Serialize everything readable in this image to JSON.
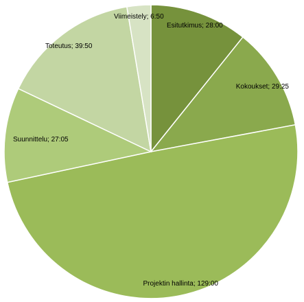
{
  "chart_data": {
    "type": "pie",
    "title": "",
    "units": "h:mm",
    "start_angle_deg": 0,
    "direction": "clockwise",
    "slices": [
      {
        "label": "Esitutkimus; 28:00",
        "value": 28.0,
        "color": "#76923c"
      },
      {
        "label": "Kokoukset; 29:25",
        "value": 29.4167,
        "color": "#8aa94d"
      },
      {
        "label": "Projektin hallinta; 129:00",
        "value": 129.0,
        "color": "#9bbb59"
      },
      {
        "label": "Suunnittelu; 27:05",
        "value": 27.0833,
        "color": "#aecb7a"
      },
      {
        "label": "Toteutus; 39:50",
        "value": 39.8333,
        "color": "#c3d6a3"
      },
      {
        "label": "Viimeistely; 6:50",
        "value": 6.8333,
        "color": "#d7e3c4"
      }
    ]
  }
}
